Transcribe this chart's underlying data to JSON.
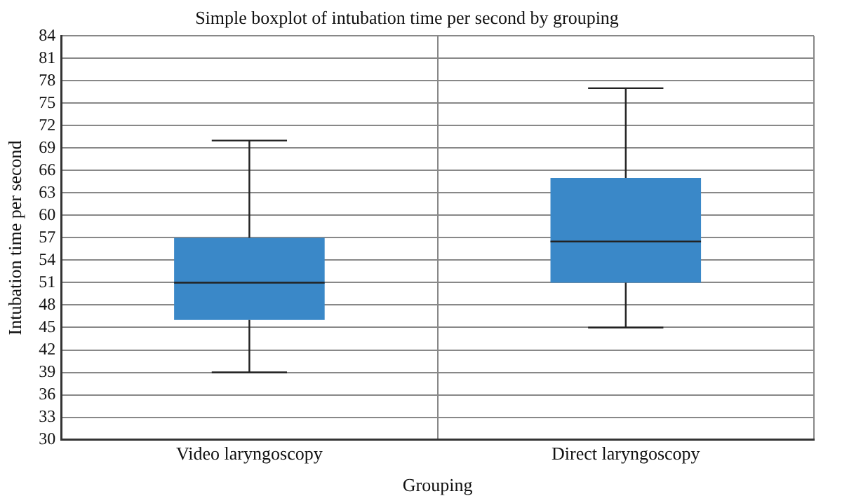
{
  "chart_data": {
    "type": "box",
    "title": "Simple boxplot of intubation time per second by grouping",
    "xlabel": "Grouping",
    "ylabel": "Intubation time per second",
    "categories": [
      "Video laryngoscopy",
      "Direct laryngoscopy"
    ],
    "color": "#3a88c8",
    "boxes": [
      {
        "low": 39,
        "q1": 46,
        "median": 51,
        "q3": 57,
        "high": 70
      },
      {
        "low": 45,
        "q1": 51,
        "median": 56.5,
        "q3": 65,
        "high": 77
      }
    ],
    "ylim": [
      30,
      84
    ],
    "yticks": [
      30,
      33,
      36,
      39,
      42,
      45,
      48,
      51,
      54,
      57,
      60,
      63,
      66,
      69,
      72,
      75,
      78,
      81,
      84
    ],
    "grid": true
  }
}
